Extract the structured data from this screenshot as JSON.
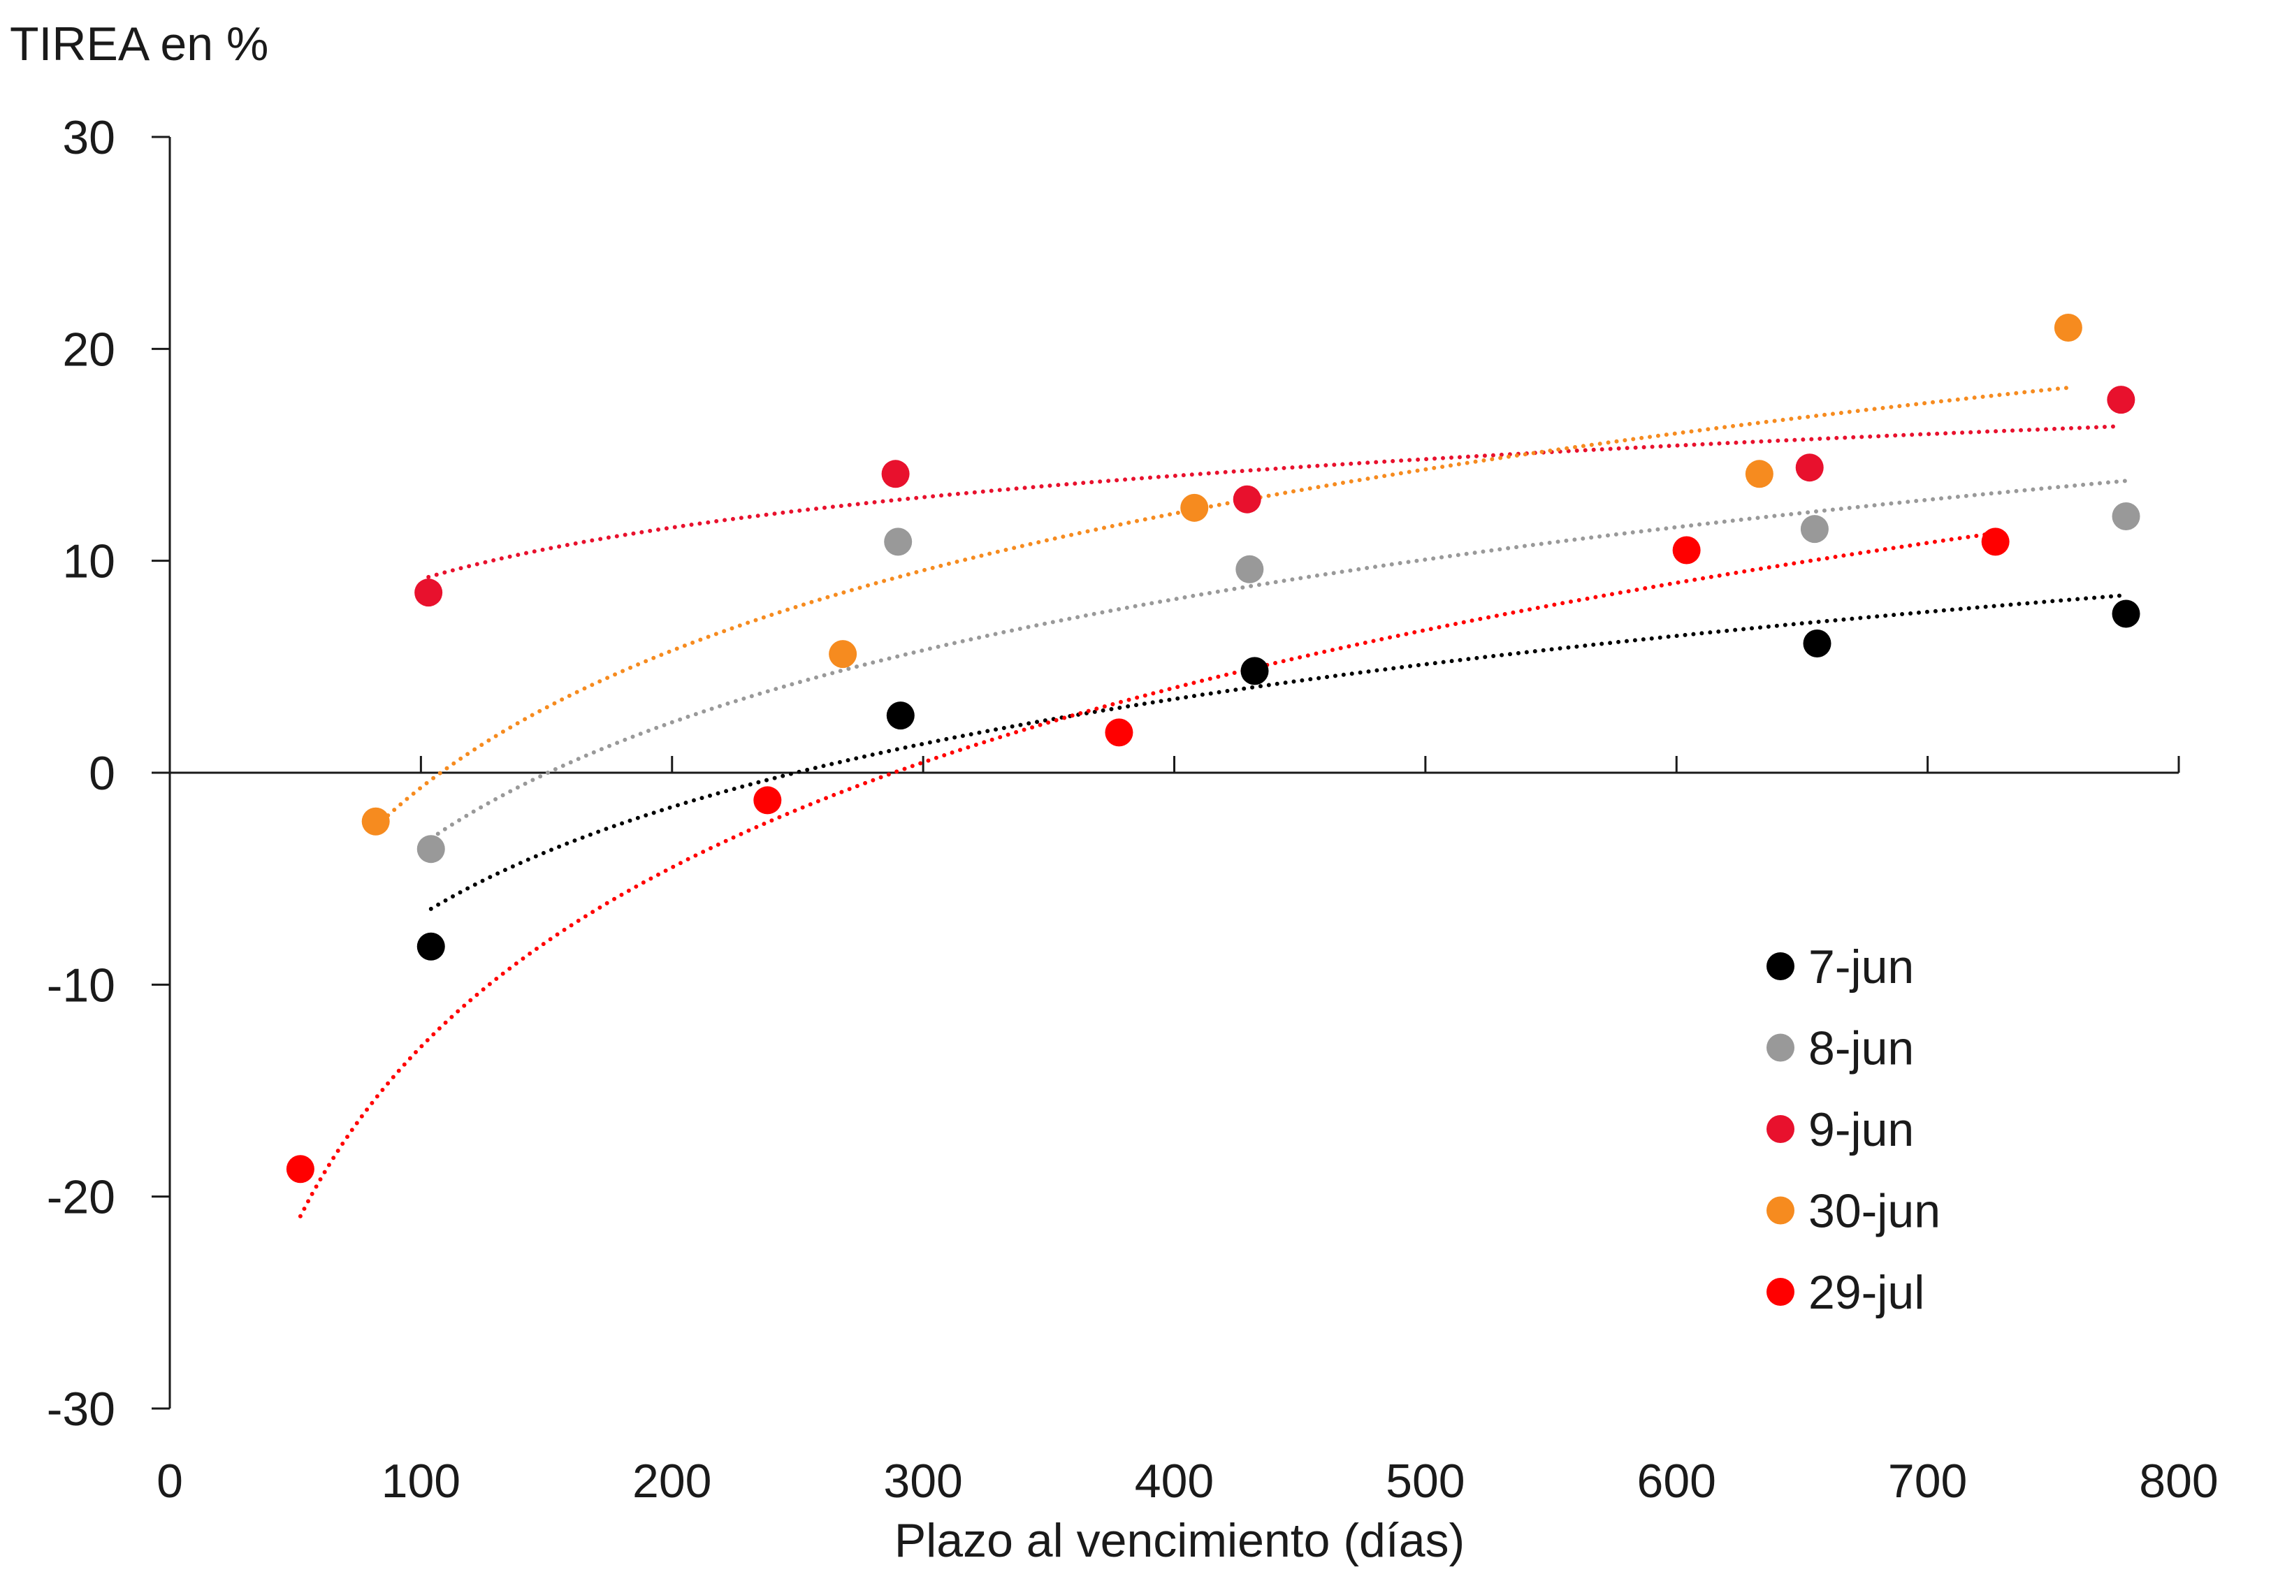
{
  "chart_data": {
    "type": "scatter",
    "title": "",
    "ylabel": "TIREA en %",
    "xlabel": "Plazo al vencimiento (días)",
    "xlim": [
      0,
      800
    ],
    "ylim": [
      -30,
      30
    ],
    "x_ticks": [
      "0",
      "100",
      "200",
      "300",
      "400",
      "500",
      "600",
      "700",
      "800"
    ],
    "y_ticks": [
      "30",
      "20",
      "10",
      "0",
      "-10",
      "-20",
      "-30"
    ],
    "grid": false,
    "legend_position": "bottom-right",
    "trendline": "logarithmic, dotted",
    "series": [
      {
        "name": "7-jun",
        "color": "#000000",
        "points": [
          [
            104,
            -8.2
          ],
          [
            291,
            2.7
          ],
          [
            432,
            4.8
          ],
          [
            656,
            6.1
          ],
          [
            779,
            7.5
          ]
        ],
        "trend": {
          "a": -40.56,
          "b": 7.35,
          "x_range": [
            104,
            779
          ]
        }
      },
      {
        "name": "8-jun",
        "color": "#999999",
        "points": [
          [
            104,
            -3.6
          ],
          [
            290,
            10.9
          ],
          [
            430,
            9.6
          ],
          [
            655,
            11.5
          ],
          [
            779,
            12.1
          ]
        ],
        "trend": {
          "a": -42.02,
          "b": 8.38,
          "x_range": [
            104,
            779
          ]
        }
      },
      {
        "name": "9-jun",
        "color": "#e8112d",
        "points": [
          [
            103,
            8.5
          ],
          [
            289,
            14.1
          ],
          [
            429,
            12.9
          ],
          [
            653,
            14.4
          ],
          [
            777,
            17.6
          ]
        ],
        "trend": {
          "a": -7.08,
          "b": 3.52,
          "x_range": [
            103,
            777
          ]
        }
      },
      {
        "name": "30-jun",
        "color": "#f68b1f",
        "points": [
          [
            82,
            -2.3
          ],
          [
            268,
            5.6
          ],
          [
            408,
            12.5
          ],
          [
            633,
            14.1
          ],
          [
            756,
            21.0
          ]
        ],
        "trend": {
          "a": -43.67,
          "b": 9.33,
          "x_range": [
            82,
            756
          ]
        }
      },
      {
        "name": "29-jul",
        "color": "#ff0000",
        "points": [
          [
            52,
            -18.7
          ],
          [
            238,
            -1.3
          ],
          [
            378,
            1.9
          ],
          [
            604,
            10.5
          ],
          [
            727,
            10.9
          ]
        ],
        "trend": {
          "a": -69.21,
          "b": 12.22,
          "x_range": [
            52,
            727
          ]
        }
      }
    ]
  }
}
